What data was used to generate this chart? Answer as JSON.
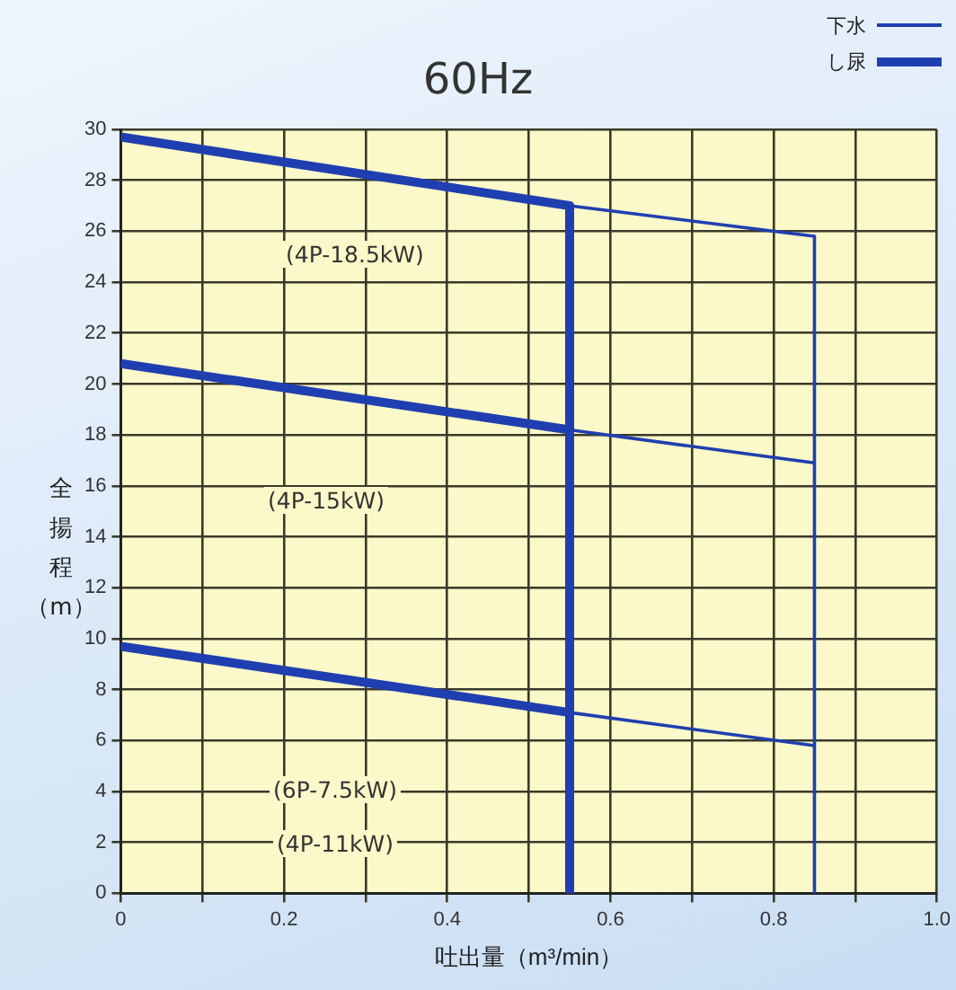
{
  "chart_data": {
    "type": "line",
    "title": "60Hz",
    "xlabel": "吐出量（m³/min）",
    "ylabel": "全揚程（m）",
    "series": [
      {
        "name": "下水",
        "color": "#1f3fb0",
        "x": [
          0,
          0.55,
          0.85,
          0.85
        ],
        "values": [
          29.7,
          27.0,
          25.8,
          0
        ]
      },
      {
        "color": "#1f3fb0",
        "x": [
          0,
          0.55,
          0.85
        ],
        "values": [
          20.8,
          18.2,
          16.9
        ]
      },
      {
        "color": "#1f3fb0",
        "x": [
          0,
          0.55,
          0.85
        ],
        "values": [
          9.7,
          7.1,
          5.8
        ]
      },
      {
        "name": "し尿",
        "color": "#1f3fb0",
        "x": [
          0,
          0.55,
          0.55
        ],
        "values": [
          29.7,
          27.0,
          0
        ]
      },
      {
        "color": "#1f3fb0",
        "x": [
          0,
          0.55
        ],
        "values": [
          20.8,
          18.2
        ]
      },
      {
        "color": "#1f3fb0",
        "x": [
          0,
          0.55
        ],
        "values": [
          9.7,
          7.1
        ]
      }
    ],
    "annotations": [
      "(4P-18.5kW)",
      "(4P-15kW)",
      "(6P-7.5kW)",
      "(4P-11kW)"
    ],
    "xlim": [
      0,
      1
    ],
    "xticks": [
      0,
      {
        "value": 0.1,
        "label": null
      },
      0.2,
      {
        "value": 0.3,
        "label": null
      },
      0.4,
      {
        "value": 0.5,
        "label": null
      },
      0.6,
      {
        "value": 0.7,
        "label": null
      },
      0.8,
      {
        "value": 0.9,
        "label": null
      },
      {
        "value": 1,
        "label": "1.0"
      }
    ],
    "ylim": [
      0,
      30
    ],
    "yticks": [
      0,
      2,
      4,
      6,
      8,
      10,
      12,
      14,
      16,
      18,
      20,
      22,
      24,
      26,
      28,
      30
    ],
    "grid": true,
    "legend": "top right",
    "marker": "none",
    "line_style": "solid"
  }
}
